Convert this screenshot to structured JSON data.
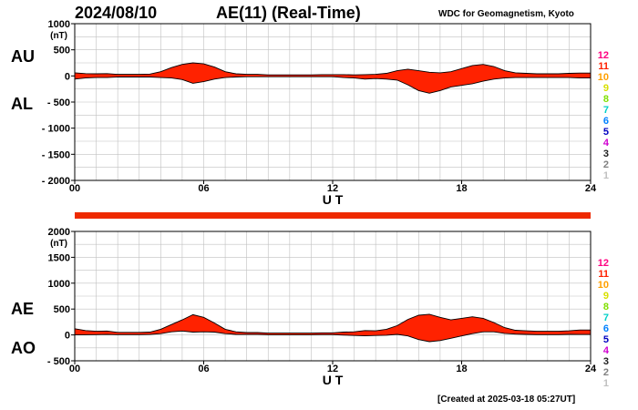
{
  "header": {
    "date": "2024/08/10",
    "title": "AE(11) (Real-Time)",
    "source": "WDC for Geomagnetism, Kyoto",
    "created": "[Created at 2025-03-18 05:27UT]"
  },
  "labels": {
    "au": "AU",
    "al": "AL",
    "ae": "AE",
    "ao": "AO"
  },
  "colors": {
    "fill": "#ff2200",
    "bar": "#ee2a00",
    "grid": "#c0c0c0"
  },
  "station_scale": [
    {
      "n": "12",
      "color": "#ff0080"
    },
    {
      "n": "11",
      "color": "#ff2000"
    },
    {
      "n": "10",
      "color": "#ffa000"
    },
    {
      "n": "9",
      "color": "#d8e000"
    },
    {
      "n": "8",
      "color": "#80e000"
    },
    {
      "n": "7",
      "color": "#00d0c8"
    },
    {
      "n": "6",
      "color": "#0080ff"
    },
    {
      "n": "5",
      "color": "#0000c0"
    },
    {
      "n": "4",
      "color": "#d000d0"
    },
    {
      "n": "3",
      "color": "#202020"
    },
    {
      "n": "2",
      "color": "#808080"
    },
    {
      "n": "1",
      "color": "#c0c0c0"
    }
  ],
  "chart_data": [
    {
      "type": "area",
      "series": [
        {
          "name": "AU",
          "x": [
            0,
            0.5,
            1,
            1.5,
            2,
            2.5,
            3,
            3.5,
            4,
            4.5,
            5,
            5.5,
            6,
            6.5,
            7,
            7.5,
            8,
            8.5,
            9,
            9.5,
            10,
            10.5,
            11,
            11.5,
            12,
            12.5,
            13,
            13.5,
            14,
            14.5,
            15,
            15.5,
            16,
            16.5,
            17,
            17.5,
            18,
            18.5,
            19,
            19.5,
            20,
            20.5,
            21,
            21.5,
            22,
            22.5,
            23,
            23.5,
            24
          ],
          "values": [
            60,
            45,
            40,
            45,
            30,
            30,
            30,
            35,
            80,
            160,
            220,
            250,
            230,
            170,
            80,
            40,
            30,
            30,
            20,
            20,
            20,
            20,
            20,
            25,
            25,
            25,
            20,
            25,
            30,
            50,
            100,
            130,
            100,
            70,
            60,
            80,
            140,
            200,
            220,
            180,
            100,
            60,
            50,
            40,
            40,
            40,
            50,
            55,
            55
          ]
        },
        {
          "name": "AL",
          "x": [
            0,
            0.5,
            1,
            1.5,
            2,
            2.5,
            3,
            3.5,
            4,
            4.5,
            5,
            5.5,
            6,
            6.5,
            7,
            7.5,
            8,
            8.5,
            9,
            9.5,
            10,
            10.5,
            11,
            11.5,
            12,
            12.5,
            13,
            13.5,
            14,
            14.5,
            15,
            15.5,
            16,
            16.5,
            17,
            17.5,
            18,
            18.5,
            19,
            19.5,
            20,
            20.5,
            21,
            21.5,
            22,
            22.5,
            23,
            23.5,
            24
          ],
          "values": [
            -60,
            -40,
            -30,
            -30,
            -20,
            -20,
            -20,
            -20,
            -30,
            -40,
            -70,
            -140,
            -110,
            -60,
            -30,
            -20,
            -15,
            -15,
            -15,
            -15,
            -15,
            -15,
            -15,
            -15,
            -15,
            -30,
            -40,
            -60,
            -50,
            -60,
            -80,
            -170,
            -280,
            -330,
            -280,
            -210,
            -180,
            -150,
            -100,
            -60,
            -40,
            -30,
            -30,
            -30,
            -30,
            -30,
            -30,
            -40,
            -40
          ]
        }
      ],
      "ylim": [
        -2000,
        1000
      ],
      "yticks": [
        1000,
        500,
        0,
        -500,
        -1000,
        -1500,
        -2000
      ],
      "ytick_labels": [
        "1000",
        "500",
        "0",
        "- 500",
        "- 1000",
        "- 1500",
        "- 2000"
      ],
      "unit": "(nT)",
      "xlim": [
        0,
        24
      ],
      "xticks": [
        0,
        6,
        12,
        18,
        24
      ],
      "xtick_labels": [
        "00",
        "06",
        "12",
        "18",
        "24"
      ],
      "xlabel": "U T",
      "grid": true
    },
    {
      "type": "area",
      "series": [
        {
          "name": "AE",
          "x": [
            0,
            0.5,
            1,
            1.5,
            2,
            2.5,
            3,
            3.5,
            4,
            4.5,
            5,
            5.5,
            6,
            6.5,
            7,
            7.5,
            8,
            8.5,
            9,
            9.5,
            10,
            10.5,
            11,
            11.5,
            12,
            12.5,
            13,
            13.5,
            14,
            14.5,
            15,
            15.5,
            16,
            16.5,
            17,
            17.5,
            18,
            18.5,
            19,
            19.5,
            20,
            20.5,
            21,
            21.5,
            22,
            22.5,
            23,
            23.5,
            24
          ],
          "values": [
            120,
            85,
            70,
            75,
            50,
            50,
            50,
            55,
            110,
            200,
            290,
            390,
            340,
            230,
            110,
            60,
            45,
            45,
            35,
            35,
            35,
            35,
            35,
            40,
            40,
            55,
            60,
            85,
            80,
            110,
            180,
            300,
            380,
            400,
            340,
            290,
            320,
            350,
            320,
            240,
            140,
            90,
            80,
            70,
            70,
            70,
            80,
            95,
            95
          ]
        },
        {
          "name": "AO",
          "x": [
            0,
            0.5,
            1,
            1.5,
            2,
            2.5,
            3,
            3.5,
            4,
            4.5,
            5,
            5.5,
            6,
            6.5,
            7,
            7.5,
            8,
            8.5,
            9,
            9.5,
            10,
            10.5,
            11,
            11.5,
            12,
            12.5,
            13,
            13.5,
            14,
            14.5,
            15,
            15.5,
            16,
            16.5,
            17,
            17.5,
            18,
            18.5,
            19,
            19.5,
            20,
            20.5,
            21,
            21.5,
            22,
            22.5,
            23,
            23.5,
            24
          ],
          "values": [
            0,
            3,
            5,
            8,
            5,
            5,
            5,
            8,
            25,
            60,
            75,
            55,
            60,
            55,
            25,
            10,
            8,
            8,
            3,
            3,
            3,
            3,
            3,
            5,
            5,
            -3,
            -10,
            -18,
            -10,
            -5,
            10,
            -20,
            -90,
            -130,
            -110,
            -65,
            -20,
            25,
            60,
            60,
            30,
            15,
            10,
            5,
            5,
            5,
            10,
            8,
            8
          ]
        }
      ],
      "ylim": [
        -500,
        2000
      ],
      "yticks": [
        2000,
        1500,
        1000,
        500,
        0,
        -500
      ],
      "ytick_labels": [
        "2000",
        "1500",
        "1000",
        "500",
        "0",
        "- 500"
      ],
      "unit": "(nT)",
      "xlim": [
        0,
        24
      ],
      "xticks": [
        0,
        6,
        12,
        18,
        24
      ],
      "xtick_labels": [
        "00",
        "06",
        "12",
        "18",
        "24"
      ],
      "xlabel": "U T",
      "grid": true
    }
  ]
}
